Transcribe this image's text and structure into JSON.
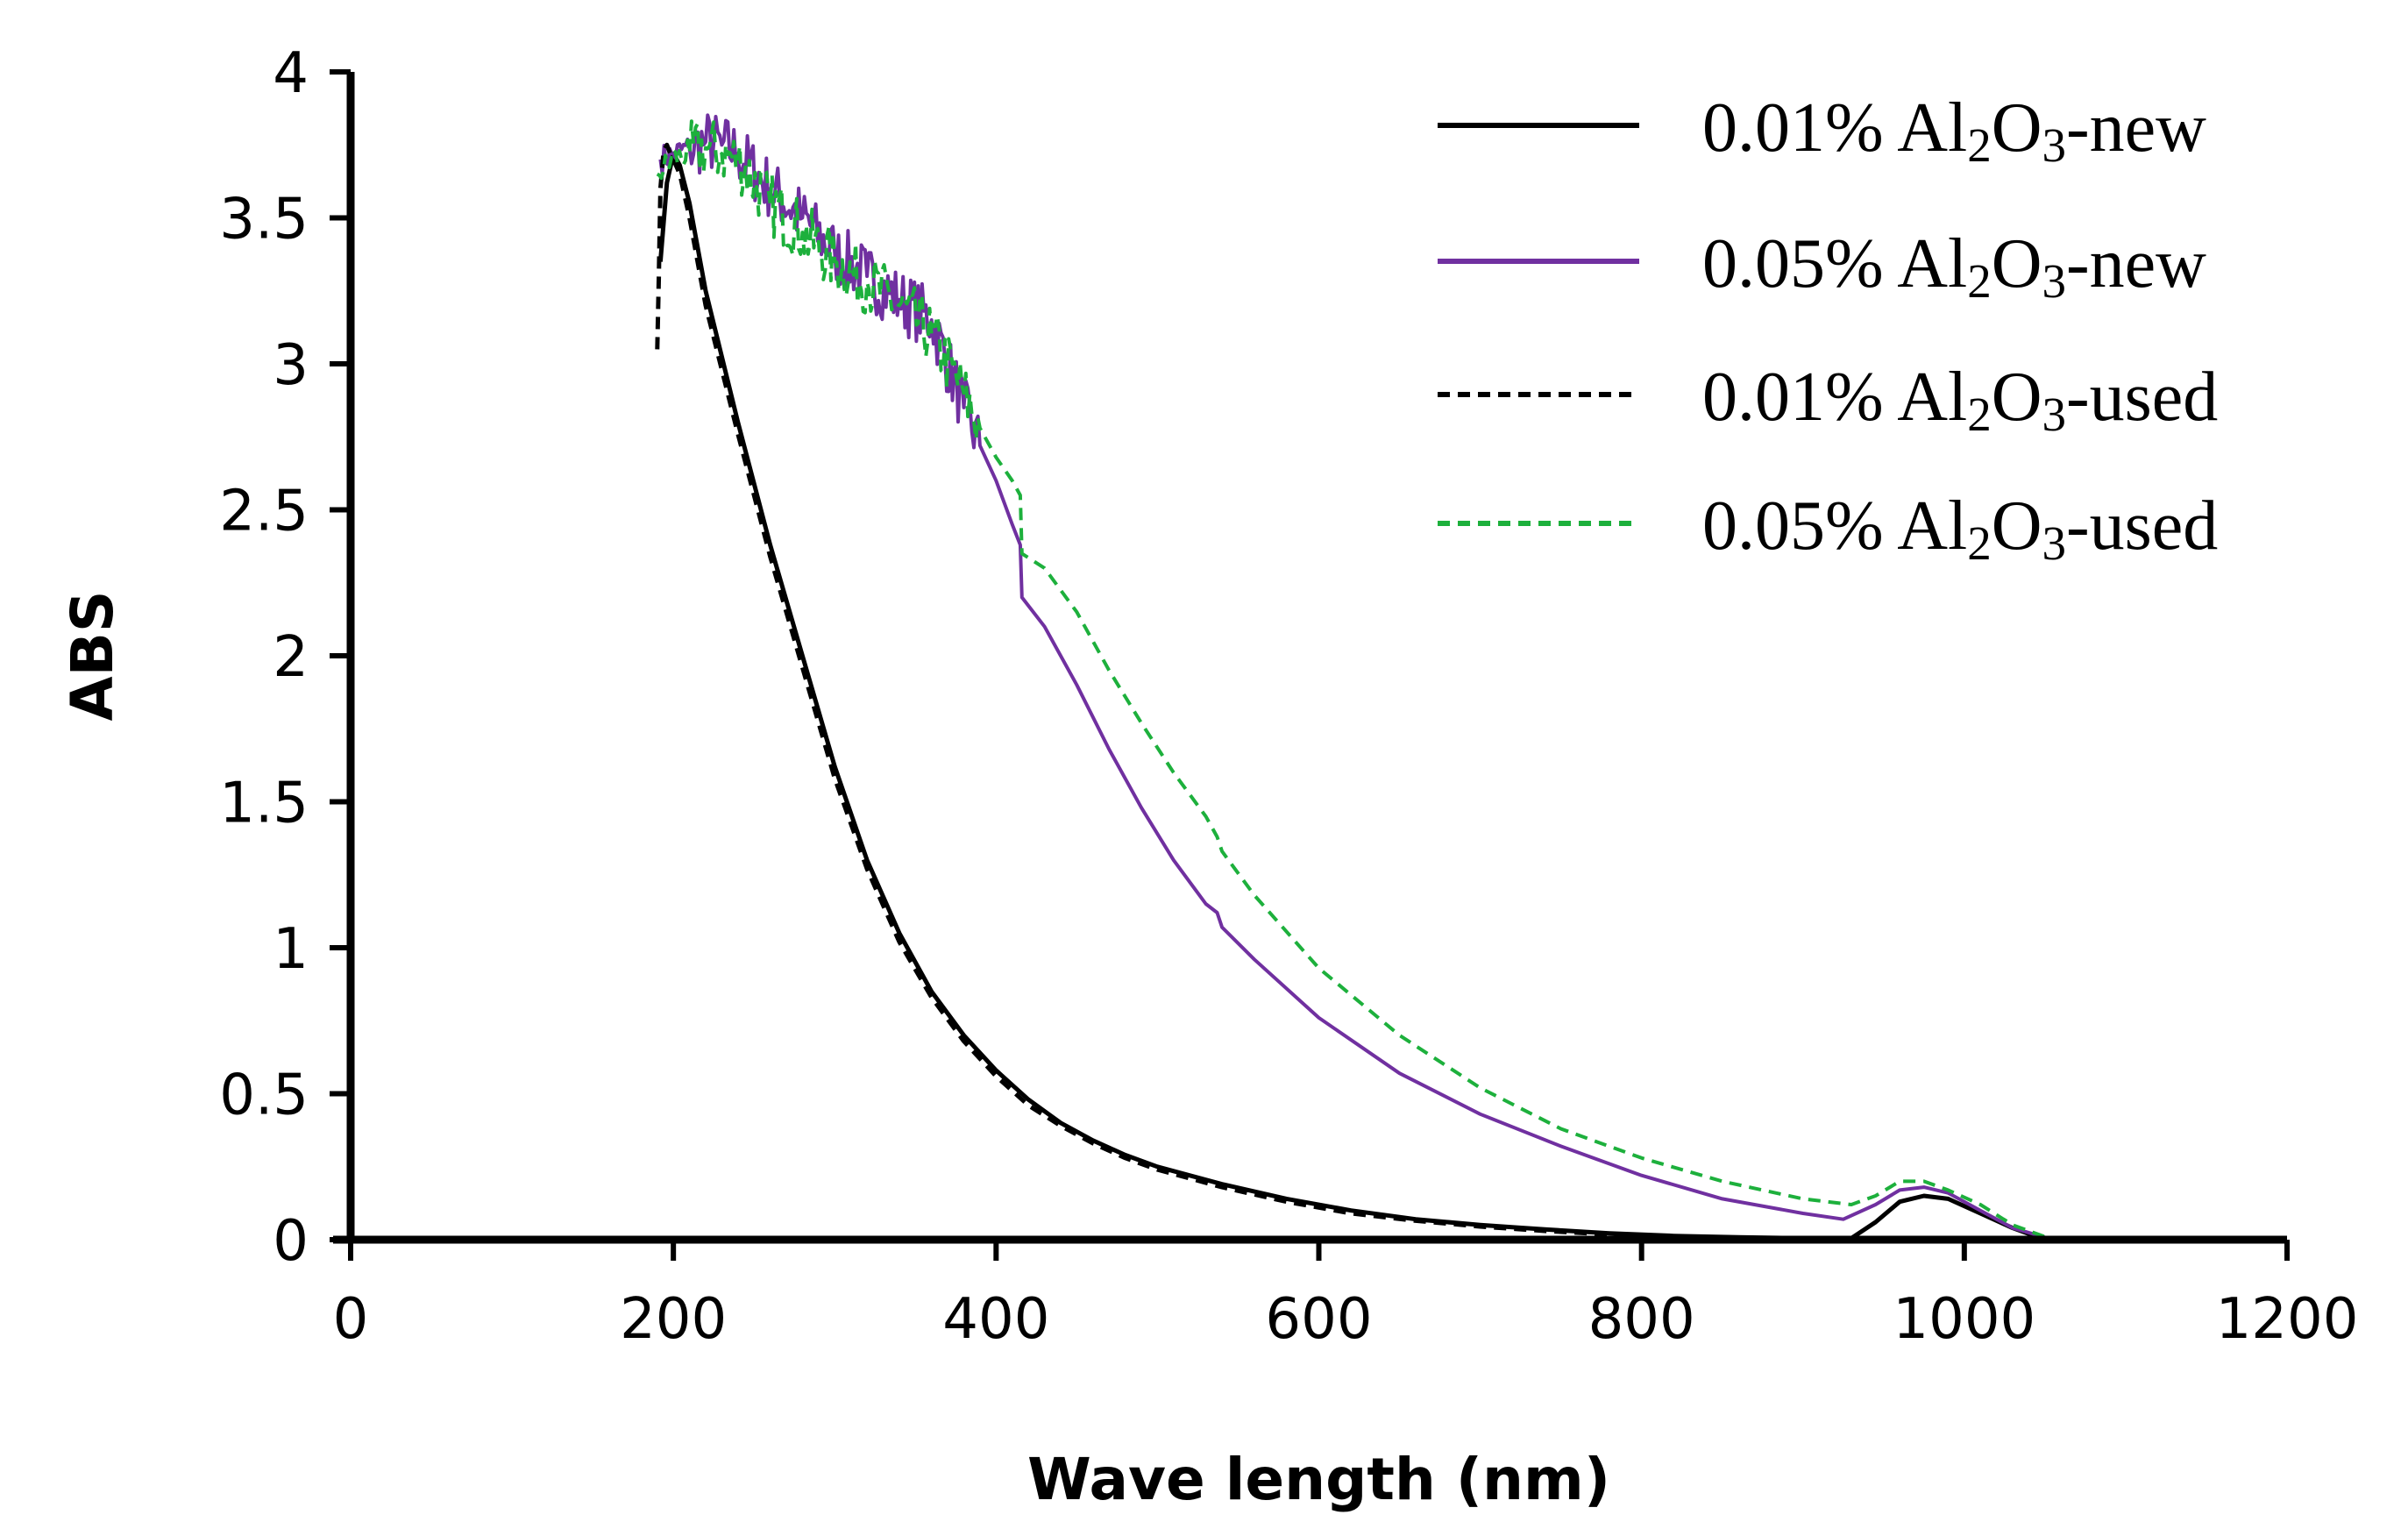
{
  "chart_data": {
    "type": "line",
    "title": "",
    "xlabel": "Wave length (nm)",
    "ylabel": "ABS",
    "xlim": [
      0,
      1200
    ],
    "ylim": [
      0,
      4
    ],
    "xticks": [
      {
        "value": 0,
        "label": "0"
      },
      {
        "value": 200,
        "label": "200"
      },
      {
        "value": 400,
        "label": "400"
      },
      {
        "value": 600,
        "label": "600"
      },
      {
        "value": 800,
        "label": "800"
      },
      {
        "value": 1000,
        "label": "1000"
      },
      {
        "value": 1200,
        "label": "1200"
      }
    ],
    "yticks": [
      {
        "value": 0,
        "label": "0"
      },
      {
        "value": 0.5,
        "label": "0.5"
      },
      {
        "value": 1,
        "label": "1"
      },
      {
        "value": 1.5,
        "label": "1.5"
      },
      {
        "value": 2,
        "label": "2"
      },
      {
        "value": 2.5,
        "label": "2.5"
      },
      {
        "value": 3,
        "label": "3"
      },
      {
        "value": 3.5,
        "label": "3.5"
      },
      {
        "value": 4,
        "label": "4"
      }
    ],
    "grid": false,
    "legend_position": "top-right",
    "series": [
      {
        "key": "s1",
        "pre": "0.01% Al",
        "sub1": "2",
        "mid": "O",
        "sub2": "3",
        "post": "-new",
        "color": "#000000",
        "dash": "solid",
        "noisy": false,
        "x": [
          192,
          196,
          200,
          204,
          210,
          220,
          240,
          260,
          280,
          300,
          320,
          340,
          360,
          380,
          400,
          420,
          440,
          460,
          480,
          500,
          540,
          580,
          620,
          660,
          700,
          740,
          780,
          820,
          860,
          900,
          930,
          945,
          960,
          975,
          990,
          1010,
          1030,
          1050
        ],
        "y": [
          3.35,
          3.62,
          3.72,
          3.68,
          3.55,
          3.25,
          2.8,
          2.38,
          2.0,
          1.62,
          1.3,
          1.05,
          0.85,
          0.7,
          0.58,
          0.48,
          0.4,
          0.34,
          0.29,
          0.25,
          0.19,
          0.14,
          0.1,
          0.07,
          0.05,
          0.035,
          0.022,
          0.013,
          0.008,
          0.005,
          0.005,
          0.06,
          0.13,
          0.15,
          0.14,
          0.09,
          0.04,
          0.0
        ]
      },
      {
        "key": "s2",
        "pre": "0.05% Al",
        "sub1": "2",
        "mid": "O",
        "sub2": "3",
        "post": "-new",
        "color": "#7030A0",
        "dash": "solid",
        "noisy": true,
        "noise_until": 385,
        "x": [
          192,
          200,
          210,
          220,
          230,
          240,
          260,
          280,
          300,
          320,
          340,
          360,
          380,
          390,
          400,
          410,
          415,
          416,
          430,
          450,
          470,
          490,
          510,
          530,
          537,
          540,
          560,
          600,
          650,
          700,
          750,
          800,
          850,
          900,
          925,
          945,
          960,
          975,
          990,
          1010,
          1030,
          1055,
          1080,
          1100
        ],
        "y": [
          3.7,
          3.72,
          3.74,
          3.76,
          3.75,
          3.72,
          3.6,
          3.5,
          3.38,
          3.3,
          3.22,
          3.15,
          2.85,
          2.72,
          2.6,
          2.45,
          2.38,
          2.2,
          2.1,
          1.9,
          1.68,
          1.48,
          1.3,
          1.15,
          1.12,
          1.07,
          0.96,
          0.76,
          0.57,
          0.43,
          0.32,
          0.22,
          0.14,
          0.09,
          0.07,
          0.12,
          0.17,
          0.18,
          0.16,
          0.1,
          0.04,
          0.0,
          0.0,
          0.0
        ]
      },
      {
        "key": "s3",
        "pre": "0.01% Al",
        "sub1": "2",
        "mid": "O",
        "sub2": "3",
        "post": "-used",
        "color": "#000000",
        "dash": "14,9",
        "noisy": false,
        "x": [
          190,
          191,
          192,
          194,
          196,
          198,
          200,
          204,
          210,
          220,
          240,
          260,
          280,
          300,
          320,
          340,
          360,
          380,
          400,
          420,
          440,
          460,
          480,
          500,
          540,
          580,
          620,
          660,
          700,
          740,
          780,
          820
        ],
        "y": [
          3.05,
          3.3,
          3.6,
          3.73,
          3.75,
          3.72,
          3.7,
          3.65,
          3.5,
          3.2,
          2.76,
          2.34,
          1.96,
          1.58,
          1.27,
          1.02,
          0.83,
          0.68,
          0.56,
          0.46,
          0.39,
          0.33,
          0.28,
          0.24,
          0.18,
          0.13,
          0.09,
          0.065,
          0.045,
          0.03,
          0.018,
          0.01
        ]
      },
      {
        "key": "s4",
        "pre": "0.05% Al",
        "sub1": "2",
        "mid": "O",
        "sub2": "3",
        "post": "-used",
        "color": "#1DB03C",
        "dash": "14,9",
        "noisy": true,
        "noise_until": 385,
        "x": [
          190,
          200,
          210,
          220,
          230,
          240,
          260,
          280,
          300,
          320,
          340,
          360,
          380,
          390,
          400,
          410,
          415,
          416,
          430,
          450,
          470,
          490,
          510,
          530,
          537,
          540,
          560,
          600,
          650,
          700,
          750,
          800,
          850,
          900,
          930,
          945,
          960,
          975,
          990,
          1010,
          1030,
          1055,
          1080,
          1100
        ],
        "y": [
          3.65,
          3.7,
          3.72,
          3.74,
          3.72,
          3.7,
          3.55,
          3.45,
          3.35,
          3.28,
          3.2,
          3.1,
          2.9,
          2.78,
          2.68,
          2.6,
          2.55,
          2.35,
          2.3,
          2.15,
          1.95,
          1.77,
          1.6,
          1.45,
          1.38,
          1.33,
          1.18,
          0.93,
          0.7,
          0.52,
          0.38,
          0.28,
          0.2,
          0.14,
          0.12,
          0.15,
          0.2,
          0.2,
          0.17,
          0.12,
          0.05,
          0.0,
          0.0,
          0.0
        ]
      }
    ]
  }
}
